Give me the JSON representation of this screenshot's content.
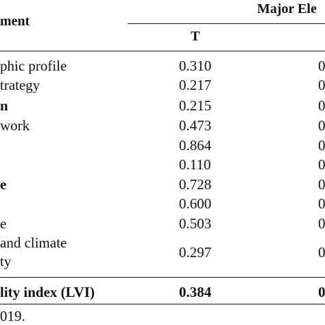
{
  "table": {
    "header": {
      "component_label": "ment",
      "group_label": "Major Ele",
      "col_t": "T",
      "col_2_fragment": ""
    },
    "rows": [
      {
        "label": "phic profile",
        "t": "0.310",
        "col2": "0",
        "bold": false
      },
      {
        "label": "trategy",
        "t": "0.217",
        "col2": "0",
        "bold": false
      },
      {
        "label": "n",
        "t": "0.215",
        "col2": "0",
        "bold": true
      },
      {
        "label": "work",
        "t": "0.473",
        "col2": "0",
        "bold": false
      },
      {
        "label": "",
        "t": "0.864",
        "col2": "0",
        "bold": false
      },
      {
        "label": "",
        "t": "0.110",
        "col2": "0",
        "bold": false
      },
      {
        "label": "e",
        "t": "0.728",
        "col2": "0",
        "bold": true
      },
      {
        "label": "",
        "t": "0.600",
        "col2": "0",
        "bold": false
      },
      {
        "label": "e",
        "t": "0.503",
        "col2": "0",
        "bold": false
      },
      {
        "label": "and climate",
        "label2": "ty",
        "t": "0.297",
        "col2": "0",
        "bold": false
      }
    ],
    "total": {
      "label": "lity index (LVI)",
      "t": "0.384",
      "col2": "0"
    },
    "footnote": "019."
  }
}
